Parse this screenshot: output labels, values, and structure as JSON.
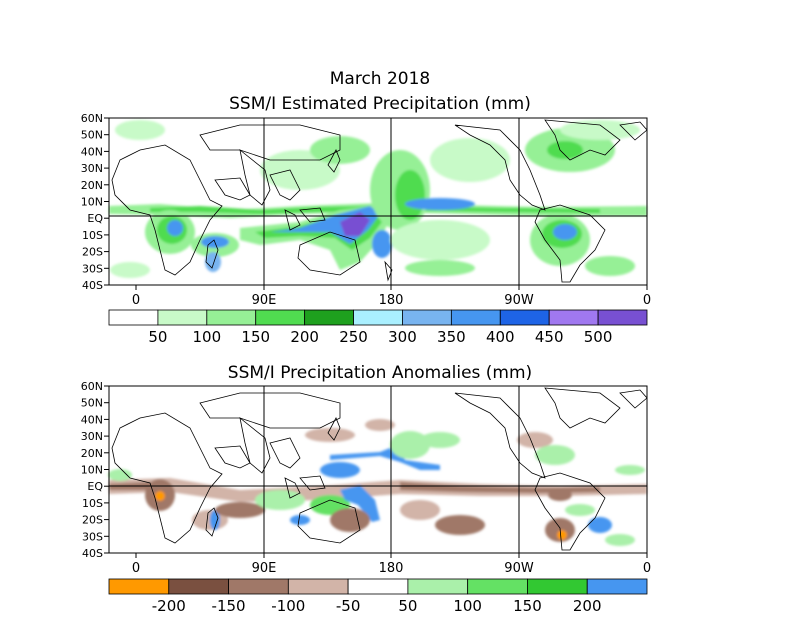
{
  "header": {
    "date": "March 2018",
    "title_top": "SSM/I Estimated Precipitation (mm)",
    "title_bottom": "SSM/I Precipitation Anomalies (mm)"
  },
  "axes": {
    "lat_labels": [
      "60N",
      "50N",
      "40N",
      "30N",
      "20N",
      "10N",
      "EQ",
      "10S",
      "20S",
      "30S",
      "40S"
    ],
    "lon_labels": [
      "0",
      "90E",
      "180",
      "90W",
      "0"
    ]
  },
  "legend_top": {
    "labels": [
      "50",
      "100",
      "150",
      "200",
      "250",
      "300",
      "350",
      "400",
      "450",
      "500"
    ],
    "colors": [
      "#ffffff",
      "#c8fac8",
      "#96f096",
      "#50dc50",
      "#1ea01e",
      "#aaf0ff",
      "#78b4f0",
      "#4696f0",
      "#1e64e6",
      "#a078f0",
      "#7850d2"
    ]
  },
  "legend_bottom": {
    "labels": [
      "-200",
      "-150",
      "-100",
      "-50",
      "50",
      "100",
      "150",
      "200"
    ],
    "colors": [
      "#ff9900",
      "#7a5040",
      "#a07868",
      "#d2b4a8",
      "#ffffff",
      "#aaf0aa",
      "#64e164",
      "#32c832",
      "#4696f0"
    ]
  }
}
